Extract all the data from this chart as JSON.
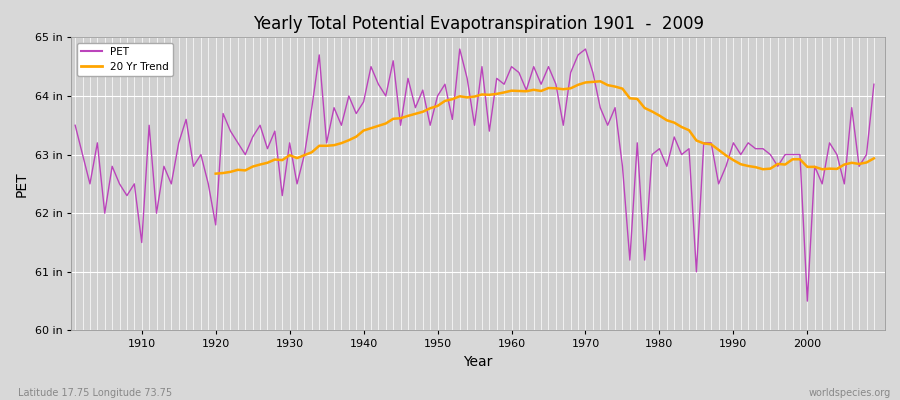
{
  "title": "Yearly Total Potential Evapotranspiration 1901  -  2009",
  "xlabel": "Year",
  "ylabel": "PET",
  "lat_lon_label": "Latitude 17.75 Longitude 73.75",
  "source_label": "worldspecies.org",
  "ylim": [
    60,
    65
  ],
  "yticks": [
    60,
    61,
    62,
    63,
    64,
    65
  ],
  "xticks": [
    1910,
    1920,
    1930,
    1940,
    1950,
    1960,
    1970,
    1980,
    1990,
    2000
  ],
  "pet_color": "#BB44BB",
  "trend_color": "#FFA500",
  "figure_bg": "#D8D8D8",
  "plot_bg": "#D0D0D0",
  "grid_color": "#FFFFFF",
  "legend_labels": [
    "PET",
    "20 Yr Trend"
  ],
  "years": [
    1901,
    1902,
    1903,
    1904,
    1905,
    1906,
    1907,
    1908,
    1909,
    1910,
    1911,
    1912,
    1913,
    1914,
    1915,
    1916,
    1917,
    1918,
    1919,
    1920,
    1921,
    1922,
    1923,
    1924,
    1925,
    1926,
    1927,
    1928,
    1929,
    1930,
    1931,
    1932,
    1933,
    1934,
    1935,
    1936,
    1937,
    1938,
    1939,
    1940,
    1941,
    1942,
    1943,
    1944,
    1945,
    1946,
    1947,
    1948,
    1949,
    1950,
    1951,
    1952,
    1953,
    1954,
    1955,
    1956,
    1957,
    1958,
    1959,
    1960,
    1961,
    1962,
    1963,
    1964,
    1965,
    1966,
    1967,
    1968,
    1969,
    1970,
    1971,
    1972,
    1973,
    1974,
    1975,
    1976,
    1977,
    1978,
    1979,
    1980,
    1981,
    1982,
    1983,
    1984,
    1985,
    1986,
    1987,
    1988,
    1989,
    1990,
    1991,
    1992,
    1993,
    1994,
    1995,
    1996,
    1997,
    1998,
    1999,
    2000,
    2001,
    2002,
    2003,
    2004,
    2005,
    2006,
    2007,
    2008,
    2009
  ],
  "pet_values": [
    63.5,
    63.0,
    62.5,
    63.2,
    62.0,
    62.8,
    62.5,
    62.3,
    62.5,
    61.5,
    63.5,
    62.0,
    62.8,
    62.5,
    63.2,
    63.6,
    62.8,
    63.0,
    62.5,
    61.8,
    63.7,
    63.4,
    63.2,
    63.0,
    63.3,
    63.5,
    63.1,
    63.4,
    62.3,
    63.2,
    62.5,
    63.0,
    63.8,
    64.7,
    63.2,
    63.8,
    63.5,
    64.0,
    63.7,
    63.9,
    64.5,
    64.2,
    64.0,
    64.6,
    63.5,
    64.3,
    63.8,
    64.1,
    63.5,
    64.0,
    64.2,
    63.6,
    64.8,
    64.3,
    63.5,
    64.5,
    63.4,
    64.3,
    64.2,
    64.5,
    64.4,
    64.1,
    64.5,
    64.2,
    64.5,
    64.2,
    63.5,
    64.4,
    64.7,
    64.8,
    64.4,
    63.8,
    63.5,
    63.8,
    62.8,
    61.2,
    63.2,
    61.2,
    63.0,
    63.1,
    62.8,
    63.3,
    63.0,
    63.1,
    61.0,
    63.2,
    63.2,
    62.5,
    62.8,
    63.2,
    63.0,
    63.2,
    63.1,
    63.1,
    63.0,
    62.8,
    63.0,
    63.0,
    63.0,
    60.5,
    62.8,
    62.5,
    63.2,
    63.0,
    62.5,
    63.8,
    62.8,
    63.0,
    64.2
  ]
}
